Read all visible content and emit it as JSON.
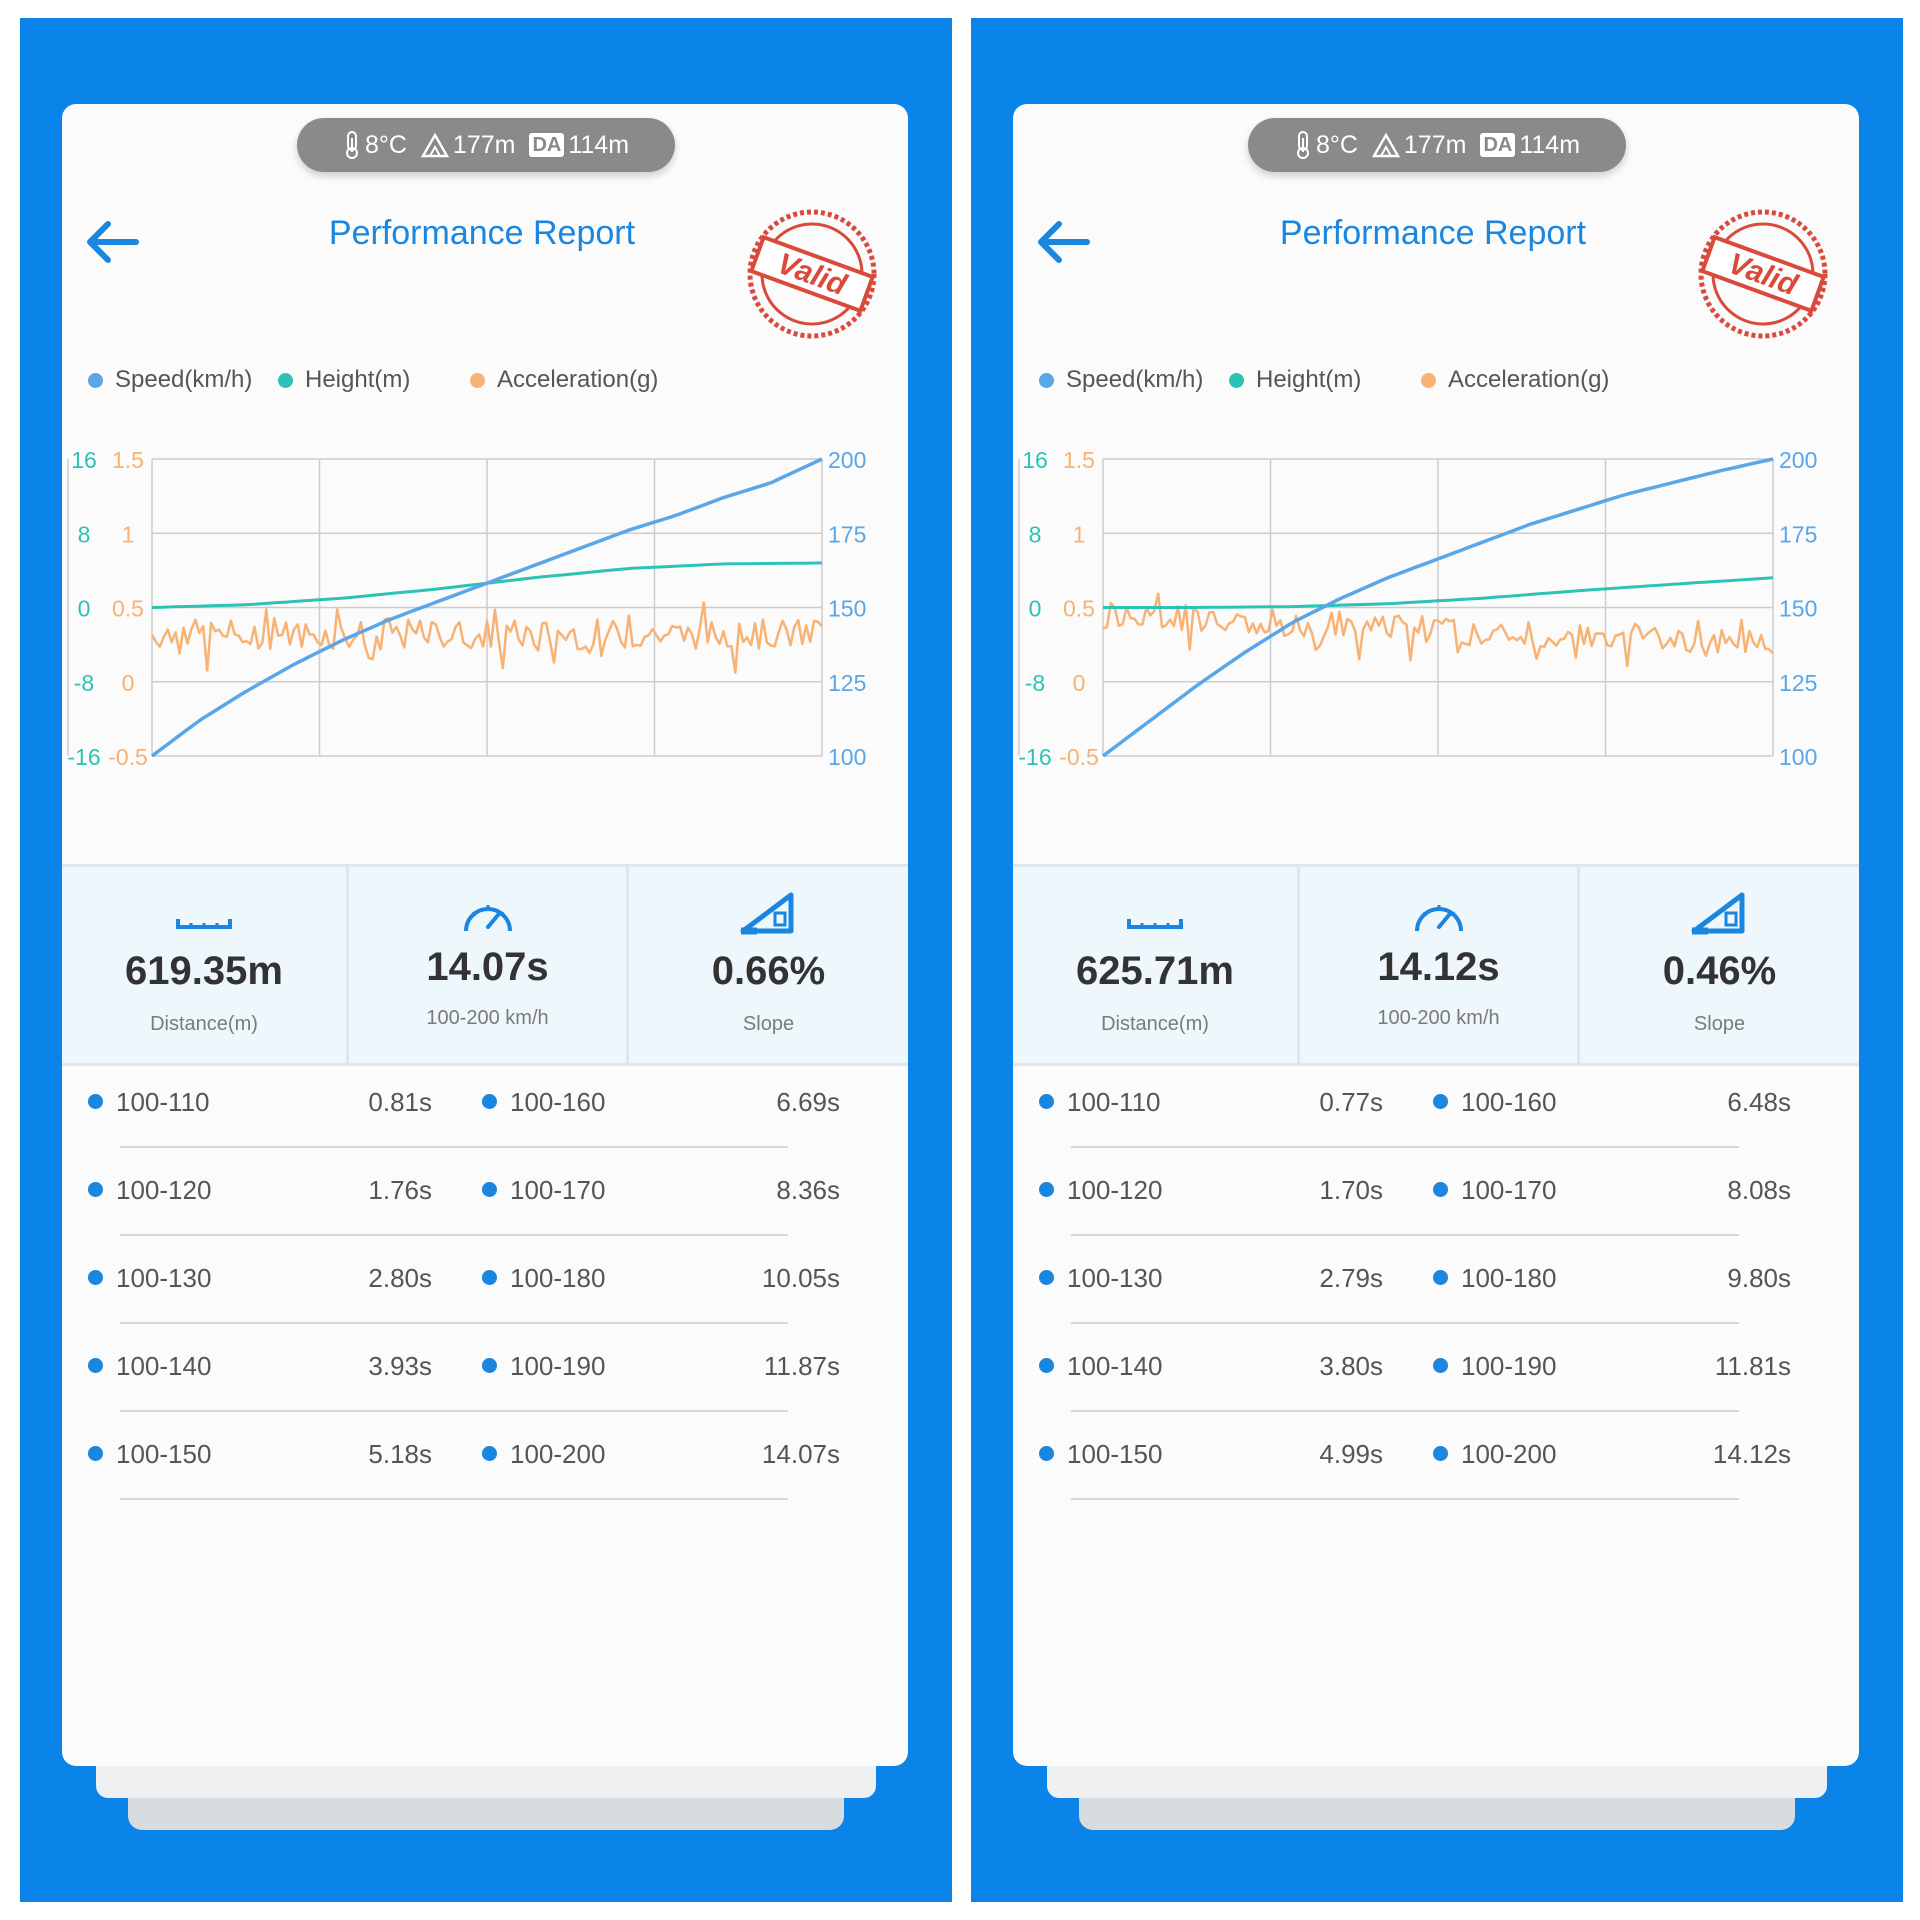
{
  "panels": [
    {
      "env": {
        "temperature": "8°C",
        "altitude": "177m",
        "da_badge": "DA",
        "da_value": "114m"
      },
      "title": "Performance Report",
      "stamp_text": "Valid",
      "legend": [
        "Speed(km/h)",
        "Height(m)",
        "Acceleration(g)"
      ],
      "stats": [
        {
          "value": "619.35m",
          "label": "Distance(m)",
          "icon": "ruler-icon"
        },
        {
          "value": "14.07s",
          "label": "100-200 km/h",
          "icon": "speedometer-icon"
        },
        {
          "value": "0.66%",
          "label": "Slope",
          "icon": "slope-icon"
        }
      ],
      "splits": [
        {
          "range": "100-110",
          "time": "0.81s"
        },
        {
          "range": "100-160",
          "time": "6.69s"
        },
        {
          "range": "100-120",
          "time": "1.76s"
        },
        {
          "range": "100-170",
          "time": "8.36s"
        },
        {
          "range": "100-130",
          "time": "2.80s"
        },
        {
          "range": "100-180",
          "time": "10.05s"
        },
        {
          "range": "100-140",
          "time": "3.93s"
        },
        {
          "range": "100-190",
          "time": "11.87s"
        },
        {
          "range": "100-150",
          "time": "5.18s"
        },
        {
          "range": "100-200",
          "time": "14.07s"
        }
      ]
    },
    {
      "env": {
        "temperature": "8°C",
        "altitude": "177m",
        "da_badge": "DA",
        "da_value": "114m"
      },
      "title": "Performance Report",
      "stamp_text": "Valid",
      "legend": [
        "Speed(km/h)",
        "Height(m)",
        "Acceleration(g)"
      ],
      "stats": [
        {
          "value": "625.71m",
          "label": "Distance(m)",
          "icon": "ruler-icon"
        },
        {
          "value": "14.12s",
          "label": "100-200 km/h",
          "icon": "speedometer-icon"
        },
        {
          "value": "0.46%",
          "label": "Slope",
          "icon": "slope-icon"
        }
      ],
      "splits": [
        {
          "range": "100-110",
          "time": "0.77s"
        },
        {
          "range": "100-160",
          "time": "6.48s"
        },
        {
          "range": "100-120",
          "time": "1.70s"
        },
        {
          "range": "100-170",
          "time": "8.08s"
        },
        {
          "range": "100-130",
          "time": "2.79s"
        },
        {
          "range": "100-180",
          "time": "9.80s"
        },
        {
          "range": "100-140",
          "time": "3.80s"
        },
        {
          "range": "100-190",
          "time": "11.81s"
        },
        {
          "range": "100-150",
          "time": "4.99s"
        },
        {
          "range": "100-200",
          "time": "14.12s"
        }
      ]
    }
  ],
  "colors": {
    "speed": "#5aa6e6",
    "height": "#2cc3b6",
    "accel": "#f7b274",
    "accent": "#1a86e0",
    "grid": "#cccccc"
  },
  "chart_data": [
    {
      "type": "line",
      "axes": {
        "height_ticks": [
          "16",
          "8",
          "0",
          "-8",
          "-16"
        ],
        "accel_ticks": [
          "1.5",
          "1",
          "0.5",
          "0",
          "-0.5"
        ],
        "speed_ticks": [
          "200",
          "175",
          "150",
          "125",
          "100"
        ],
        "height_range": [
          -16,
          16
        ],
        "accel_range": [
          -0.5,
          1.5
        ],
        "speed_range": [
          100,
          200
        ]
      },
      "series": [
        {
          "name": "Speed(km/h)",
          "key": "speed",
          "t": [
            0,
            1,
            2,
            3,
            4,
            5,
            6,
            7,
            8,
            9,
            10,
            11,
            12,
            13,
            14.07
          ],
          "values": [
            100,
            112,
            122,
            131,
            139,
            146,
            152,
            158,
            164,
            170,
            176,
            181,
            187,
            192,
            200
          ]
        },
        {
          "name": "Height(m)",
          "key": "height",
          "t": [
            0,
            2,
            4,
            6,
            8,
            10,
            12,
            14.07
          ],
          "values": [
            0,
            0.3,
            1.0,
            2.0,
            3.2,
            4.2,
            4.7,
            4.8
          ]
        },
        {
          "name": "Acceleration(g)",
          "key": "accel",
          "base": 0.3,
          "amplitude": 0.1
        }
      ]
    },
    {
      "type": "line",
      "axes": {
        "height_ticks": [
          "16",
          "8",
          "0",
          "-8",
          "-16"
        ],
        "accel_ticks": [
          "1.5",
          "1",
          "0.5",
          "0",
          "-0.5"
        ],
        "speed_ticks": [
          "200",
          "175",
          "150",
          "125",
          "100"
        ],
        "height_range": [
          -16,
          16
        ],
        "accel_range": [
          -0.5,
          1.5
        ],
        "speed_range": [
          100,
          200
        ]
      },
      "series": [
        {
          "name": "Speed(km/h)",
          "key": "speed",
          "t": [
            0,
            1,
            2,
            3,
            4,
            5,
            6,
            7,
            8,
            9,
            10,
            11,
            12,
            13,
            14.12
          ],
          "values": [
            100,
            112,
            124,
            135,
            145,
            153,
            160,
            166,
            172,
            178,
            183,
            188,
            192,
            196,
            200
          ]
        },
        {
          "name": "Height(m)",
          "key": "height",
          "t": [
            0,
            2,
            4,
            6,
            8,
            10,
            12,
            14.12
          ],
          "values": [
            0,
            0,
            0.1,
            0.4,
            1.0,
            1.8,
            2.5,
            3.2
          ]
        },
        {
          "name": "Acceleration(g)",
          "key": "accel",
          "base": 0.28,
          "amplitude": 0.09
        }
      ]
    }
  ]
}
